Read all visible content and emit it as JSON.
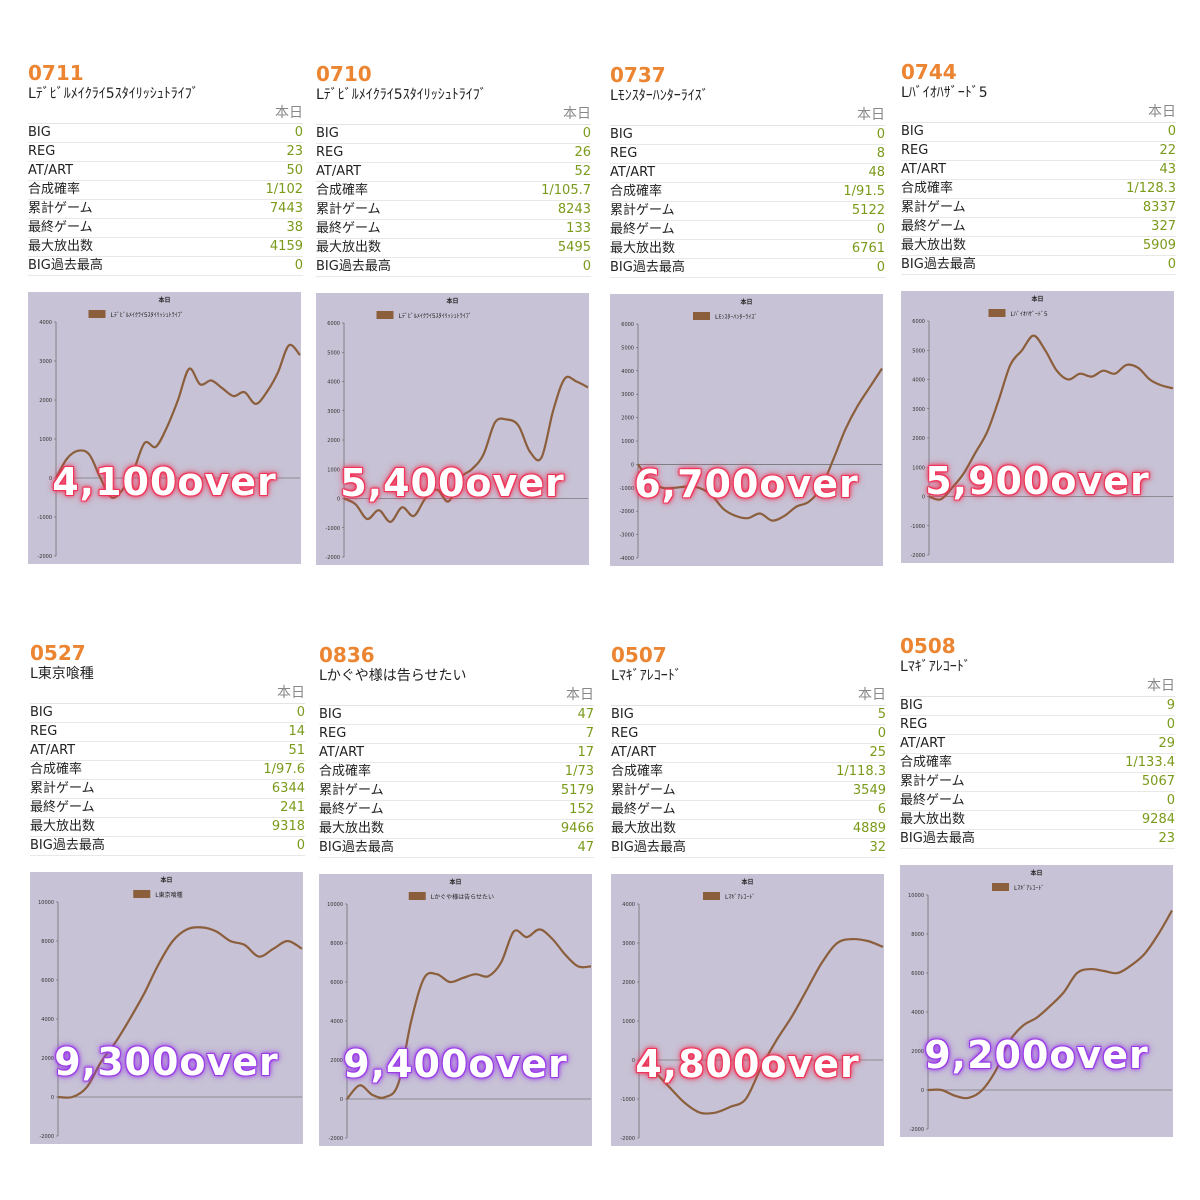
{
  "header_label": "本日",
  "stat_labels": [
    "BIG",
    "REG",
    "AT/ART",
    "合成確率",
    "累計ゲーム",
    "最終ゲーム",
    "最大放出数",
    "BIG過去最高"
  ],
  "colors": {
    "id": "#ec8532",
    "value": "#7a9a1a",
    "line": "#8b5e3c",
    "chart_bg": "#c7c2d5",
    "overlay_red": "#f0355a",
    "overlay_purple": "#9b3de8"
  },
  "machines": [
    {
      "id": "0711",
      "name": "Lﾃﾞﾋﾞﾙﾒｲｸﾗｲ5ｽﾀｲﾘｯｼｭﾄﾗｲﾌﾞ",
      "col_head": "本日",
      "stats": [
        "0",
        "23",
        "50",
        "1/102",
        "7443",
        "38",
        "4159",
        "0"
      ],
      "overlay": "4,100over",
      "overlay_color": "red"
    },
    {
      "id": "0710",
      "name": "Lﾃﾞﾋﾞﾙﾒｲｸﾗｲ5ｽﾀｲﾘｯｼｭﾄﾗｲﾌﾞ",
      "col_head": "本日",
      "stats": [
        "0",
        "26",
        "52",
        "1/105.7",
        "8243",
        "133",
        "5495",
        "0"
      ],
      "overlay": "5,400over",
      "overlay_color": "red"
    },
    {
      "id": "0737",
      "name": "Lﾓﾝｽﾀｰﾊﾝﾀｰﾗｲｽﾞ",
      "col_head": "本日",
      "stats": [
        "0",
        "8",
        "48",
        "1/91.5",
        "5122",
        "0",
        "6761",
        "0"
      ],
      "overlay": "6,700over",
      "overlay_color": "red"
    },
    {
      "id": "0744",
      "name": "Lﾊﾞｲｵﾊｻﾞｰﾄﾞ5",
      "col_head": "本日",
      "stats": [
        "0",
        "22",
        "43",
        "1/128.3",
        "8337",
        "327",
        "5909",
        "0"
      ],
      "overlay": "5,900over",
      "overlay_color": "red"
    },
    {
      "id": "0527",
      "name": "L東京喰種",
      "col_head": "本日",
      "stats": [
        "0",
        "14",
        "51",
        "1/97.6",
        "6344",
        "241",
        "9318",
        "0"
      ],
      "overlay": "9,300over",
      "overlay_color": "purple"
    },
    {
      "id": "0836",
      "name": "Lかぐや様は告らせたい",
      "col_head": "本日",
      "stats": [
        "47",
        "7",
        "17",
        "1/73",
        "5179",
        "152",
        "9466",
        "47"
      ],
      "overlay": "9,400over",
      "overlay_color": "purple"
    },
    {
      "id": "0507",
      "name": "Lﾏｷﾞｱﾚｺｰﾄﾞ",
      "col_head": "本日",
      "stats": [
        "5",
        "0",
        "25",
        "1/118.3",
        "3549",
        "6",
        "4889",
        "32"
      ],
      "overlay": "4,800over",
      "overlay_color": "red"
    },
    {
      "id": "0508",
      "name": "Lﾏｷﾞｱﾚｺｰﾄﾞ",
      "col_head": "本日",
      "stats": [
        "9",
        "0",
        "29",
        "1/133.4",
        "5067",
        "0",
        "9284",
        "23"
      ],
      "overlay": "9,200over",
      "overlay_color": "purple"
    }
  ],
  "chart_data": [
    {
      "type": "line",
      "title": "本日",
      "ylim": [
        -2000,
        4000
      ],
      "yticks": [
        -2000,
        -1000,
        0,
        1000,
        2000,
        3000,
        4000
      ],
      "grid": false,
      "legend": "top",
      "series": [
        {
          "name": "Lﾃﾞﾋﾞﾙﾒｲｸﾗｲ5ｽﾀｲﾘｯｼｭﾄﾗｲﾌﾞ",
          "values": [
            0,
            500,
            700,
            600,
            0,
            -500,
            -300,
            200,
            900,
            800,
            1300,
            2000,
            2800,
            2400,
            2500,
            2300,
            2100,
            2200,
            1900,
            2200,
            2700,
            3400,
            3150
          ]
        }
      ]
    },
    {
      "type": "line",
      "title": "本日",
      "ylim": [
        -2000,
        6000
      ],
      "yticks": [
        -2000,
        -1000,
        0,
        1000,
        2000,
        3000,
        4000,
        5000,
        6000
      ],
      "grid": false,
      "legend": "top",
      "series": [
        {
          "name": "Lﾃﾞﾋﾞﾙﾒｲｸﾗｲ5ｽﾀｲﾘｯｼｭﾄﾗｲﾌﾞ",
          "values": [
            0,
            -200,
            -700,
            -400,
            -800,
            -300,
            -600,
            0,
            300,
            -100,
            700,
            1000,
            1500,
            2600,
            2700,
            2500,
            1600,
            1400,
            3000,
            4100,
            4000,
            3800
          ]
        }
      ]
    },
    {
      "type": "line",
      "title": "本日",
      "ylim": [
        -4000,
        6000
      ],
      "yticks": [
        -4000,
        -3000,
        -2000,
        -1000,
        0,
        1000,
        2000,
        3000,
        4000,
        5000,
        6000
      ],
      "grid": false,
      "legend": "top",
      "series": [
        {
          "name": "Lﾓﾝｽﾀｰﾊﾝﾀｰﾗｲｽﾞ",
          "values": [
            0,
            -700,
            -1000,
            -1000,
            -950,
            -1000,
            -1300,
            -1900,
            -2200,
            -2300,
            -2100,
            -2400,
            -2200,
            -1800,
            -1600,
            -1000,
            200,
            1500,
            2500,
            3300,
            4100
          ]
        }
      ]
    },
    {
      "type": "line",
      "title": "本日",
      "ylim": [
        -2000,
        6000
      ],
      "yticks": [
        -2000,
        -1000,
        0,
        1000,
        2000,
        3000,
        4000,
        5000,
        6000
      ],
      "grid": false,
      "legend": "top",
      "series": [
        {
          "name": "Lﾊﾞｲｵﾊｻﾞｰﾄﾞ5",
          "values": [
            0,
            -100,
            300,
            800,
            1500,
            2200,
            3300,
            4500,
            5000,
            5500,
            5000,
            4300,
            4000,
            4200,
            4100,
            4300,
            4200,
            4500,
            4400,
            4000,
            3800,
            3700
          ]
        }
      ]
    },
    {
      "type": "line",
      "title": "本日",
      "ylim": [
        -2000,
        10000
      ],
      "yticks": [
        -2000,
        0,
        2000,
        4000,
        6000,
        8000,
        10000
      ],
      "grid": false,
      "legend": "top",
      "series": [
        {
          "name": "L東京喰種",
          "values": [
            0,
            0,
            500,
            1800,
            2800,
            4000,
            5300,
            6800,
            8000,
            8600,
            8700,
            8500,
            8000,
            7800,
            7200,
            7600,
            8000,
            7600
          ]
        }
      ]
    },
    {
      "type": "line",
      "title": "本日",
      "ylim": [
        -2000,
        10000
      ],
      "yticks": [
        -2000,
        0,
        2000,
        4000,
        6000,
        8000,
        10000
      ],
      "grid": false,
      "legend": "top",
      "series": [
        {
          "name": "Lかぐや様は告らせたい",
          "values": [
            0,
            700,
            200,
            100,
            800,
            4000,
            6200,
            6400,
            6000,
            6200,
            6400,
            6300,
            7000,
            8600,
            8300,
            8700,
            8200,
            7400,
            6800,
            6800
          ]
        }
      ]
    },
    {
      "type": "line",
      "title": "本日",
      "ylim": [
        -2000,
        4000
      ],
      "yticks": [
        -2000,
        -1000,
        0,
        1000,
        2000,
        3000,
        4000
      ],
      "grid": false,
      "legend": "top",
      "series": [
        {
          "name": "Lﾏｷﾞｱﾚｺｰﾄﾞ",
          "values": [
            0,
            -300,
            -700,
            -1100,
            -1350,
            -1350,
            -1200,
            -1000,
            -200,
            500,
            1100,
            1800,
            2500,
            3000,
            3100,
            3050,
            2900
          ]
        }
      ]
    },
    {
      "type": "line",
      "title": "本日",
      "ylim": [
        -2000,
        10000
      ],
      "yticks": [
        -2000,
        0,
        2000,
        4000,
        6000,
        8000,
        10000
      ],
      "grid": false,
      "legend": "top",
      "series": [
        {
          "name": "Lﾏｷﾞｱﾚｺｰﾄﾞ",
          "values": [
            0,
            0,
            -300,
            -400,
            0,
            1000,
            2500,
            3300,
            3700,
            4300,
            5000,
            6000,
            6200,
            6100,
            6000,
            6400,
            7000,
            8000,
            9200
          ]
        }
      ]
    }
  ]
}
